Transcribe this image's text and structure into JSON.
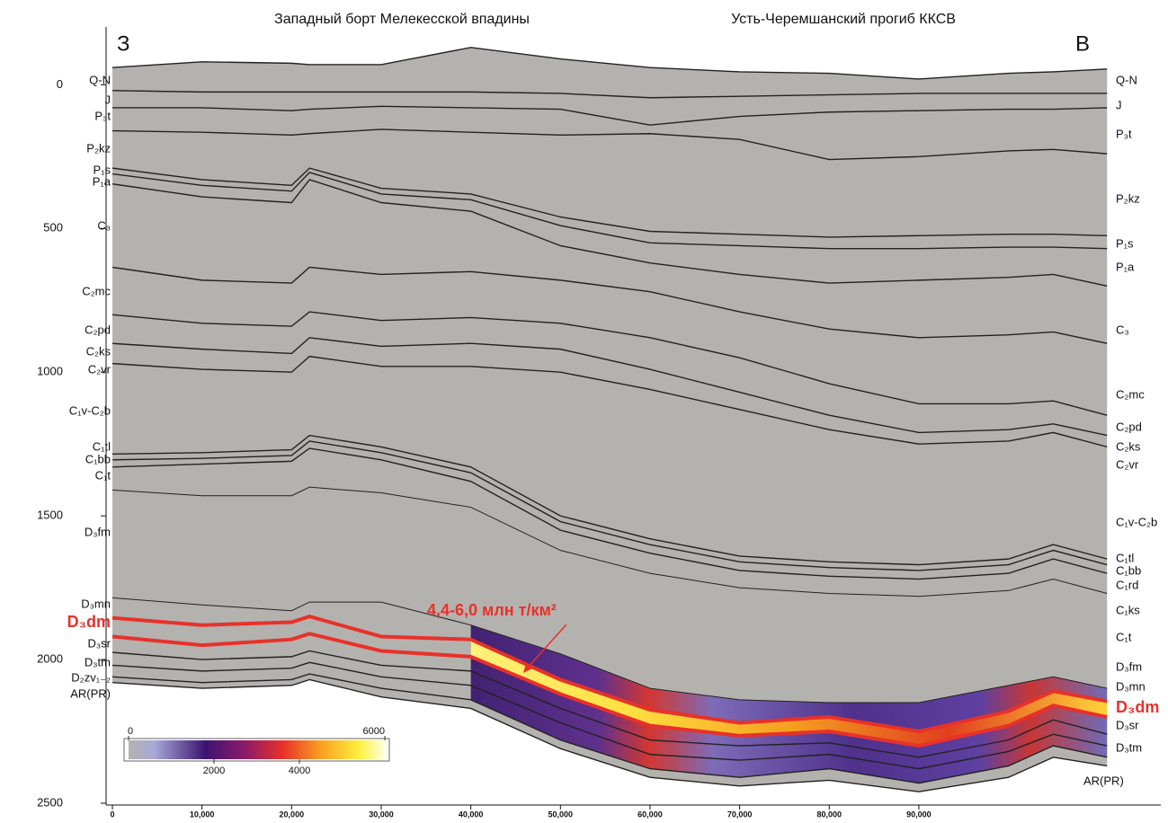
{
  "chart_data": {
    "type": "section",
    "titles": [
      "Западный борт Мелекесской впадины",
      "Усть-Черемшанский прогиб ККСВ"
    ],
    "corner_labels": [
      "З",
      "В"
    ],
    "annotation": "4,4-6,0 млн т/км²",
    "xlim": [
      0,
      117000
    ],
    "ylim": [
      -220,
      2500
    ],
    "xticks": [
      0,
      {
        "value": 10000,
        "label": "10,000"
      },
      {
        "value": 20000,
        "label": "20,000"
      },
      {
        "value": 30000,
        "label": "30,000"
      },
      {
        "value": 40000,
        "label": "40,000"
      },
      {
        "value": 50000,
        "label": "50,000"
      },
      {
        "value": 60000,
        "label": "60,000"
      },
      {
        "value": 70000,
        "label": "70,000"
      },
      {
        "value": 80000,
        "label": "80,000"
      },
      {
        "value": 90000,
        "label": "90,000"
      },
      {
        "value": {
          "value": 0
        },
        "label": ""
      }
    ],
    "yticks": [
      0,
      500,
      1000,
      1500,
      2000,
      2500
    ],
    "x": [
      0,
      10000,
      20000,
      22000,
      30000,
      40000,
      50000,
      60000,
      70000,
      80000,
      90000,
      100000,
      105000,
      111000
    ],
    "series": [
      {
        "color": "#222222",
        "values": [
          -60,
          -80,
          -75,
          -70,
          -70,
          -130,
          -90,
          -60,
          -45,
          -40,
          -20,
          -40,
          -45,
          -55
        ]
      },
      {
        "color": "#222222",
        "values": [
          20,
          25,
          25,
          25,
          25,
          25,
          30,
          45,
          40,
          35,
          30,
          30,
          30,
          30
        ]
      },
      {
        "color": "#222222",
        "values": [
          80,
          80,
          90,
          85,
          75,
          80,
          85,
          140,
          110,
          95,
          90,
          85,
          85,
          80
        ]
      },
      {
        "color": "#222222",
        "values": [
          160,
          165,
          175,
          170,
          155,
          165,
          175,
          170,
          190,
          260,
          250,
          230,
          225,
          240
        ]
      },
      {
        "color": "#222222",
        "values": [
          290,
          330,
          350,
          290,
          360,
          380,
          460,
          510,
          520,
          530,
          525,
          520,
          520,
          525
        ]
      },
      {
        "color": "#222222",
        "values": [
          310,
          350,
          370,
          305,
          380,
          400,
          490,
          550,
          560,
          570,
          570,
          565,
          565,
          570
        ]
      },
      {
        "color": "#222222",
        "values": [
          345,
          390,
          410,
          330,
          410,
          440,
          560,
          620,
          660,
          690,
          680,
          670,
          660,
          700
        ]
      },
      {
        "color": "#222222",
        "values": [
          635,
          680,
          690,
          635,
          660,
          650,
          680,
          720,
          790,
          850,
          880,
          870,
          860,
          900
        ]
      },
      {
        "color": "#222222",
        "values": [
          800,
          830,
          840,
          790,
          820,
          810,
          830,
          880,
          950,
          1040,
          1110,
          1110,
          1100,
          1150
        ]
      },
      {
        "color": "#222222",
        "values": [
          900,
          920,
          935,
          880,
          910,
          900,
          920,
          990,
          1070,
          1150,
          1210,
          1200,
          1180,
          1220
        ]
      },
      {
        "color": "#222222",
        "values": [
          970,
          990,
          1000,
          945,
          980,
          980,
          1000,
          1060,
          1130,
          1200,
          1250,
          1240,
          1210,
          1260
        ]
      },
      {
        "color": "#222222",
        "values": [
          1285,
          1280,
          1270,
          1220,
          1260,
          1330,
          1500,
          1580,
          1640,
          1660,
          1670,
          1650,
          1600,
          1650
        ]
      },
      {
        "color": "#222222",
        "values": [
          1305,
          1300,
          1290,
          1240,
          1280,
          1350,
          1520,
          1600,
          1660,
          1680,
          1690,
          1670,
          1620,
          1670
        ]
      },
      {
        "color": "#222222",
        "values": [
          1330,
          1320,
          1310,
          1265,
          1305,
          1380,
          1550,
          1630,
          1690,
          1710,
          1720,
          1700,
          1650,
          1700
        ]
      },
      {
        "color": "#222222",
        "values": [
          1410,
          1430,
          1430,
          1400,
          1420,
          1470,
          1620,
          1700,
          1750,
          1770,
          1780,
          1760,
          1720,
          1770
        ]
      },
      {
        "color": "#222222",
        "values": [
          1785,
          1810,
          1830,
          1800,
          1800,
          1880,
          1980,
          2100,
          2140,
          2150,
          2150,
          2090,
          2060,
          2100
        ]
      },
      {
        "color": "#e8312a",
        "values": [
          1855,
          1880,
          1870,
          1850,
          1920,
          1930,
          2070,
          2175,
          2220,
          2200,
          2250,
          2180,
          2110,
          2145
        ]
      },
      {
        "color": "#e8312a",
        "values": [
          1920,
          1950,
          1930,
          1910,
          1970,
          1990,
          2120,
          2230,
          2265,
          2250,
          2300,
          2230,
          2160,
          2200
        ]
      },
      {
        "color": "#222222",
        "values": [
          1975,
          2000,
          1990,
          1970,
          2020,
          2040,
          2170,
          2280,
          2300,
          2290,
          2340,
          2280,
          2210,
          2260
        ]
      },
      {
        "color": "#222222",
        "values": [
          2020,
          2040,
          2030,
          2010,
          2060,
          2090,
          2220,
          2330,
          2350,
          2330,
          2380,
          2320,
          2260,
          2300
        ]
      },
      {
        "color": "#222222",
        "values": [
          2060,
          2080,
          2070,
          2050,
          2100,
          2140,
          2280,
          2380,
          2410,
          2380,
          2430,
          2370,
          2300,
          2340
        ]
      },
      {
        "color": "#222222",
        "values": [
          2080,
          2100,
          2090,
          2070,
          2130,
          2170,
          2310,
          2410,
          2440,
          2420,
          2460,
          2410,
          2340,
          2370
        ]
      }
    ],
    "left_labels": [
      "Q-N",
      "J",
      "P₃t",
      "P₂kz",
      "P₁s",
      "P₁a",
      "C₃",
      "C₂mc",
      "C₂pd",
      "C₂ks",
      "C₂vr",
      "C₁v-C₂b",
      "C₁tl",
      "C₁bb",
      "C₁t",
      "D₃fm",
      "D₃mn",
      "D₃dm",
      "D₃sr",
      "D₃tm",
      "D₂zv₁₋₂",
      "AR(PR)"
    ],
    "right_labels": [
      "Q-N",
      "J",
      "P₃t",
      "P₂kz",
      "P₁s",
      "P₁a",
      "C₃",
      "C₂mc",
      "C₂pd",
      "C₂ks",
      "C₂vr",
      "C₁v-C₂b",
      "C₁tl",
      "C₁bb",
      "C₁rd",
      "C₁ks",
      "C₁t",
      "D₃fm",
      "D₃mn",
      "D₃dm",
      "D₃sr",
      "D₃tm",
      "AR(PR)"
    ],
    "colorbar": {
      "lim": [
        0,
        6000
      ],
      "ticks": [
        0,
        2000,
        4000,
        6000
      ]
    }
  }
}
